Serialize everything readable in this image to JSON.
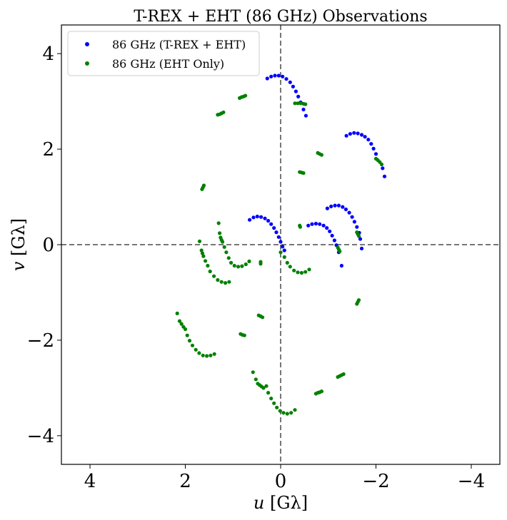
{
  "chart_data": {
    "type": "scatter",
    "title": "T-REX + EHT (86 GHz) Observations",
    "xlabel_var": "u",
    "xlabel_unit": " [Gλ]",
    "ylabel_var": "v",
    "ylabel_unit": " [Gλ]",
    "xlim": [
      4.6,
      -4.6
    ],
    "ylim": [
      -4.6,
      4.6
    ],
    "x_reversed": true,
    "xticks": [
      4,
      2,
      0,
      -2,
      -4
    ],
    "yticks": [
      4,
      2,
      0,
      -2,
      -4
    ],
    "xtick_labels": [
      "4",
      "2",
      "0",
      "−2",
      "−4"
    ],
    "ytick_labels": [
      "4",
      "2",
      "0",
      "−2",
      "−4"
    ],
    "zero_lines": true,
    "grid": false,
    "legend_position": "top-left",
    "series": [
      {
        "name": "86 GHz (T-REX + EHT)",
        "color": "#0000ff",
        "points": [
          [
            0.28,
            3.48
          ],
          [
            0.2,
            3.52
          ],
          [
            0.12,
            3.54
          ],
          [
            0.04,
            3.54
          ],
          [
            -0.04,
            3.52
          ],
          [
            -0.12,
            3.47
          ],
          [
            -0.2,
            3.4
          ],
          [
            -0.26,
            3.31
          ],
          [
            -0.32,
            3.21
          ],
          [
            -0.37,
            3.1
          ],
          [
            -0.42,
            2.98
          ],
          [
            -0.48,
            2.83
          ],
          [
            -0.53,
            2.7
          ],
          [
            -1.38,
            2.28
          ],
          [
            -1.46,
            2.32
          ],
          [
            -1.54,
            2.34
          ],
          [
            -1.62,
            2.33
          ],
          [
            -1.7,
            2.3
          ],
          [
            -1.77,
            2.26
          ],
          [
            -1.84,
            2.2
          ],
          [
            -1.9,
            2.11
          ],
          [
            -1.95,
            2.01
          ],
          [
            -2.0,
            1.9
          ],
          [
            -2.14,
            1.6
          ],
          [
            -2.18,
            1.43
          ],
          [
            0.65,
            0.52
          ],
          [
            0.57,
            0.57
          ],
          [
            0.49,
            0.59
          ],
          [
            0.41,
            0.58
          ],
          [
            0.33,
            0.55
          ],
          [
            0.26,
            0.5
          ],
          [
            0.2,
            0.43
          ],
          [
            0.14,
            0.35
          ],
          [
            0.09,
            0.26
          ],
          [
            0.04,
            0.16
          ],
          [
            0.0,
            0.06
          ],
          [
            -0.04,
            -0.04
          ],
          [
            -0.08,
            -0.12
          ],
          [
            -0.58,
            0.4
          ],
          [
            -0.66,
            0.43
          ],
          [
            -0.74,
            0.44
          ],
          [
            -0.82,
            0.43
          ],
          [
            -0.9,
            0.4
          ],
          [
            -0.97,
            0.35
          ],
          [
            -1.03,
            0.28
          ],
          [
            -1.08,
            0.19
          ],
          [
            -1.13,
            0.09
          ],
          [
            -1.17,
            -0.01
          ],
          [
            -1.22,
            -0.16
          ],
          [
            -1.28,
            -0.44
          ],
          [
            -0.98,
            0.76
          ],
          [
            -1.06,
            0.8
          ],
          [
            -1.14,
            0.82
          ],
          [
            -1.22,
            0.82
          ],
          [
            -1.3,
            0.79
          ],
          [
            -1.37,
            0.74
          ],
          [
            -1.44,
            0.67
          ],
          [
            -1.5,
            0.58
          ],
          [
            -1.55,
            0.48
          ],
          [
            -1.6,
            0.37
          ],
          [
            -1.65,
            0.25
          ],
          [
            -1.67,
            0.12
          ],
          [
            -1.7,
            -0.08
          ]
        ]
      },
      {
        "name": "86 GHz (EHT Only)",
        "color": "#008000",
        "points": [
          [
            1.32,
            2.72
          ],
          [
            1.28,
            2.73
          ],
          [
            1.24,
            2.75
          ],
          [
            1.2,
            2.77
          ],
          [
            0.86,
            3.07
          ],
          [
            0.82,
            3.09
          ],
          [
            0.78,
            3.1
          ],
          [
            0.74,
            3.12
          ],
          [
            -0.3,
            2.96
          ],
          [
            -0.36,
            2.96
          ],
          [
            -0.42,
            2.96
          ],
          [
            -0.48,
            2.95
          ],
          [
            -0.52,
            2.94
          ],
          [
            1.65,
            1.16
          ],
          [
            1.63,
            1.2
          ],
          [
            1.61,
            1.24
          ],
          [
            -0.4,
            1.52
          ],
          [
            -0.44,
            1.51
          ],
          [
            -0.48,
            1.5
          ],
          [
            -0.78,
            1.92
          ],
          [
            -0.82,
            1.9
          ],
          [
            -0.86,
            1.88
          ],
          [
            -2.0,
            1.8
          ],
          [
            -2.04,
            1.77
          ],
          [
            -2.08,
            1.73
          ],
          [
            -2.12,
            1.68
          ],
          [
            -0.4,
            0.4
          ],
          [
            -0.41,
            0.37
          ],
          [
            -1.6,
            0.26
          ],
          [
            -1.62,
            0.22
          ],
          [
            -1.64,
            0.18
          ],
          [
            -1.2,
            -0.06
          ],
          [
            -1.22,
            -0.1
          ],
          [
            -1.24,
            -0.14
          ],
          [
            1.3,
            0.45
          ],
          [
            1.28,
            0.24
          ],
          [
            1.26,
            0.15
          ],
          [
            1.24,
            0.1
          ],
          [
            1.22,
            0.06
          ],
          [
            1.18,
            -0.05
          ],
          [
            1.14,
            -0.16
          ],
          [
            1.09,
            -0.28
          ],
          [
            1.04,
            -0.38
          ],
          [
            0.97,
            -0.44
          ],
          [
            0.89,
            -0.46
          ],
          [
            0.81,
            -0.45
          ],
          [
            0.73,
            -0.41
          ],
          [
            0.66,
            -0.35
          ],
          [
            0.42,
            -0.36
          ],
          [
            0.42,
            -0.4
          ],
          [
            1.7,
            0.07
          ],
          [
            1.66,
            -0.12
          ],
          [
            1.64,
            -0.18
          ],
          [
            1.62,
            -0.24
          ],
          [
            1.58,
            -0.34
          ],
          [
            1.53,
            -0.44
          ],
          [
            1.48,
            -0.56
          ],
          [
            1.4,
            -0.66
          ],
          [
            1.32,
            -0.74
          ],
          [
            1.24,
            -0.78
          ],
          [
            1.16,
            -0.8
          ],
          [
            1.08,
            -0.78
          ],
          [
            0.0,
            -0.16
          ],
          [
            -0.08,
            -0.26
          ],
          [
            -0.14,
            -0.38
          ],
          [
            -0.2,
            -0.46
          ],
          [
            -0.28,
            -0.54
          ],
          [
            -0.36,
            -0.58
          ],
          [
            -0.44,
            -0.59
          ],
          [
            -0.52,
            -0.57
          ],
          [
            -0.6,
            -0.52
          ],
          [
            0.46,
            -1.48
          ],
          [
            0.42,
            -1.5
          ],
          [
            0.38,
            -1.52
          ],
          [
            0.84,
            -1.87
          ],
          [
            0.8,
            -1.89
          ],
          [
            0.76,
            -1.9
          ],
          [
            -1.6,
            -1.24
          ],
          [
            -1.62,
            -1.2
          ],
          [
            -1.64,
            -1.16
          ],
          [
            2.17,
            -1.44
          ],
          [
            2.12,
            -1.6
          ],
          [
            2.08,
            -1.66
          ],
          [
            2.04,
            -1.72
          ],
          [
            2.0,
            -1.77
          ],
          [
            1.96,
            -1.9
          ],
          [
            1.91,
            -2.01
          ],
          [
            1.85,
            -2.11
          ],
          [
            1.78,
            -2.2
          ],
          [
            1.71,
            -2.27
          ],
          [
            1.63,
            -2.32
          ],
          [
            1.55,
            -2.33
          ],
          [
            1.47,
            -2.32
          ],
          [
            1.39,
            -2.29
          ],
          [
            0.58,
            -2.67
          ],
          [
            0.52,
            -2.82
          ],
          [
            0.48,
            -2.91
          ],
          [
            0.44,
            -2.94
          ],
          [
            0.4,
            -2.97
          ],
          [
            0.36,
            -3.0
          ],
          [
            0.3,
            -2.96
          ],
          [
            0.26,
            -3.1
          ],
          [
            0.2,
            -3.22
          ],
          [
            0.14,
            -3.32
          ],
          [
            0.08,
            -3.41
          ],
          [
            0.01,
            -3.48
          ],
          [
            -0.06,
            -3.52
          ],
          [
            -0.14,
            -3.54
          ],
          [
            -0.22,
            -3.52
          ],
          [
            -0.3,
            -3.46
          ],
          [
            -1.2,
            -2.77
          ],
          [
            -1.24,
            -2.75
          ],
          [
            -1.28,
            -2.73
          ],
          [
            -1.32,
            -2.71
          ],
          [
            -0.74,
            -3.12
          ],
          [
            -0.78,
            -3.1
          ],
          [
            -0.82,
            -3.09
          ],
          [
            -0.86,
            -3.07
          ]
        ]
      }
    ]
  }
}
